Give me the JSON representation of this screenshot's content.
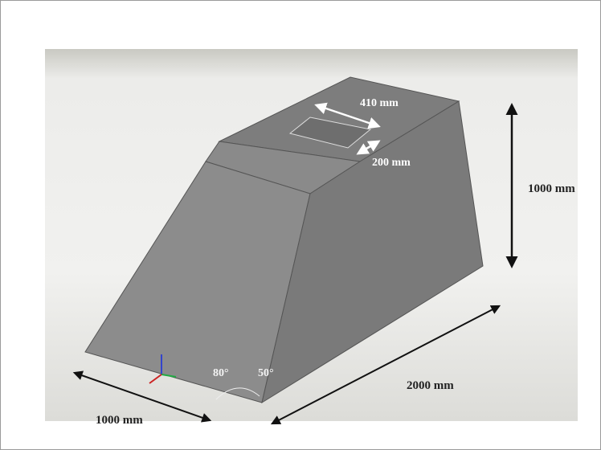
{
  "labels": {
    "top_length": "410 mm",
    "top_width": "200 mm",
    "height": "1000 mm",
    "depth": "2000 mm",
    "width": "1000 mm",
    "angle_left": "80°",
    "angle_right": "50°"
  }
}
